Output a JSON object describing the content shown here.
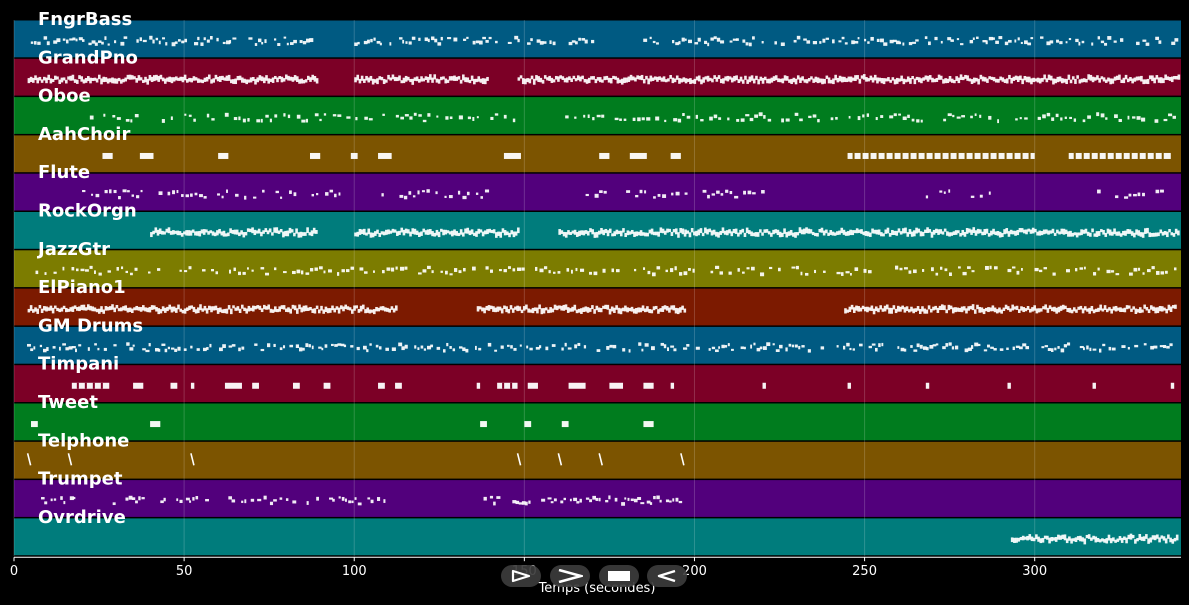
{
  "chart_data": {
    "type": "piano-roll",
    "xlabel": "Temps (secondes)",
    "xlim": [
      0,
      343
    ],
    "xticks": [
      0,
      50,
      100,
      150,
      200,
      250,
      300
    ],
    "grid": true,
    "tracks": [
      {
        "name": "FngrBass",
        "color": "#005a82",
        "segments": [
          [
            4,
            89
          ],
          [
            100,
            173
          ],
          [
            184,
            342
          ]
        ],
        "style": "dots"
      },
      {
        "name": "GrandPno",
        "color": "#7c0026",
        "segments": [
          [
            4,
            89
          ],
          [
            100,
            139
          ],
          [
            148,
            342
          ]
        ],
        "style": "dense"
      },
      {
        "name": "Oboe",
        "color": "#007c1e",
        "segments": [
          [
            17,
            150
          ],
          [
            162,
            322
          ],
          [
            322,
            342
          ]
        ],
        "style": "sparse"
      },
      {
        "name": "AahChoir",
        "color": "#7c5400",
        "segments": [
          [
            26,
            29
          ],
          [
            37,
            41
          ],
          [
            60,
            63
          ],
          [
            87,
            90
          ],
          [
            99,
            101
          ],
          [
            107,
            111
          ],
          [
            144,
            149
          ],
          [
            172,
            175
          ],
          [
            181,
            186
          ],
          [
            193,
            196
          ],
          [
            245,
            300
          ],
          [
            310,
            340
          ]
        ],
        "style": "blocks"
      },
      {
        "name": "Flute",
        "color": "#52007c",
        "segments": [
          [
            20,
            96
          ],
          [
            108,
            145
          ],
          [
            168,
            220
          ],
          [
            268,
            288
          ],
          [
            317,
            338
          ]
        ],
        "style": "sparse"
      },
      {
        "name": "RockOrgn",
        "color": "#007c7c",
        "segments": [
          [
            40,
            89
          ],
          [
            100,
            148
          ],
          [
            160,
            197
          ],
          [
            197,
            342
          ]
        ],
        "style": "dense"
      },
      {
        "name": "JazzGtr",
        "color": "#7c7c00",
        "segments": [
          [
            5,
            342
          ]
        ],
        "style": "sparse"
      },
      {
        "name": "ElPiano1",
        "color": "#7c1a00",
        "segments": [
          [
            4,
            112
          ],
          [
            136,
            197
          ],
          [
            244,
            341
          ]
        ],
        "style": "dense"
      },
      {
        "name": "GM Drums",
        "color": "#005a82",
        "segments": [
          [
            1,
            342
          ]
        ],
        "style": "dots"
      },
      {
        "name": "Timpani",
        "color": "#7c0026",
        "segments": [
          [
            17,
            28
          ],
          [
            35,
            38
          ],
          [
            46,
            48
          ],
          [
            52,
            53
          ],
          [
            62,
            67
          ],
          [
            70,
            72
          ],
          [
            82,
            84
          ],
          [
            91,
            93
          ],
          [
            107,
            109
          ],
          [
            112,
            114
          ],
          [
            136,
            137
          ],
          [
            142,
            148
          ],
          [
            151,
            154
          ],
          [
            163,
            168
          ],
          [
            175,
            179
          ],
          [
            185,
            188
          ],
          [
            193,
            194
          ],
          [
            220,
            221
          ],
          [
            245,
            246
          ],
          [
            268,
            269
          ],
          [
            292,
            293
          ],
          [
            317,
            318
          ],
          [
            340,
            341
          ]
        ],
        "style": "blocks"
      },
      {
        "name": "Tweet",
        "color": "#007c1e",
        "segments": [
          [
            5,
            7
          ],
          [
            40,
            43
          ],
          [
            137,
            139
          ],
          [
            150,
            152
          ],
          [
            161,
            163
          ],
          [
            185,
            188
          ]
        ],
        "style": "blocks"
      },
      {
        "name": "Telphone",
        "color": "#7c5400",
        "segments": [
          [
            4,
            5
          ],
          [
            16,
            17
          ],
          [
            52,
            53
          ],
          [
            148,
            149
          ],
          [
            160,
            161
          ],
          [
            172,
            173
          ],
          [
            196,
            197
          ]
        ],
        "style": "slash"
      },
      {
        "name": "Trumpet",
        "color": "#52007c",
        "segments": [
          [
            7,
            18
          ],
          [
            29,
            38
          ],
          [
            43,
            58
          ],
          [
            63,
            82
          ],
          [
            86,
            110
          ],
          [
            138,
            197
          ]
        ],
        "style": "dots"
      },
      {
        "name": "Ovrdrive",
        "color": "#007c7c",
        "segments": [
          [
            293,
            342
          ]
        ],
        "style": "dense"
      }
    ]
  },
  "controls": {
    "buttons": [
      {
        "name": "play-alt-button",
        "icon": "triangle-play-outline-icon"
      },
      {
        "name": "play-button",
        "icon": "chevron-play-icon"
      },
      {
        "name": "stop-button",
        "icon": "stop-square-icon"
      },
      {
        "name": "rewind-button",
        "icon": "triangle-back-outline-icon"
      }
    ]
  }
}
